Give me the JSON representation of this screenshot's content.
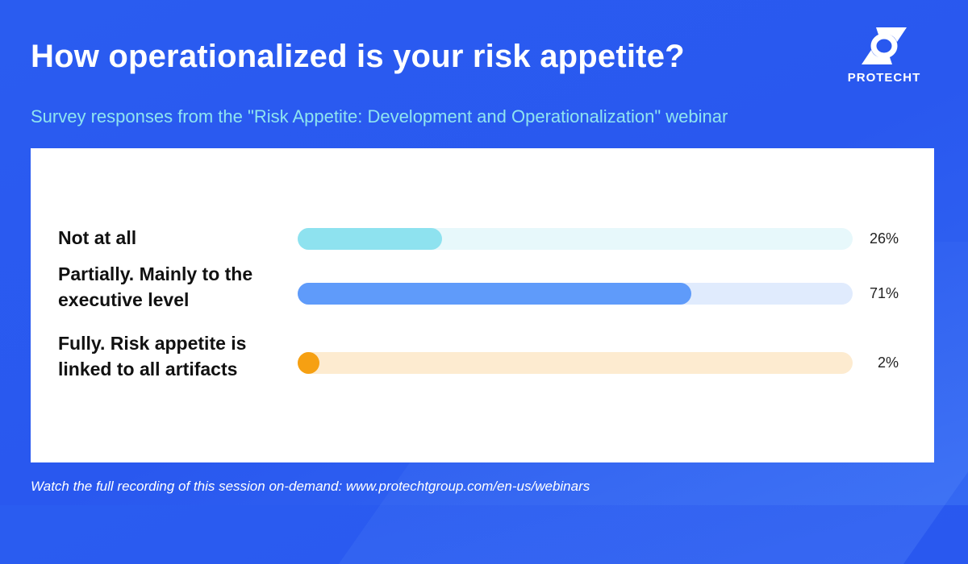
{
  "header": {
    "title": "How operationalized is your risk appetite?",
    "subtitle": "Survey responses from the \"Risk Appetite: Development and Operationalization\" webinar"
  },
  "logo": {
    "text": "PROTECHT",
    "icon": "protecht-logo-icon"
  },
  "footer": {
    "text": "Watch the full recording of this session on-demand: www.protechtgroup.com/en-us/webinars"
  },
  "colors": {
    "background": "#2a5cf0",
    "subtitle": "#8fe4f0",
    "panel": "#ffffff"
  },
  "chart_data": {
    "type": "bar",
    "orientation": "horizontal",
    "categories": [
      "Not at all",
      "Partially. Mainly  to the executive level",
      "Fully. Risk appetite is linked to all artifacts"
    ],
    "values": [
      26,
      71,
      2
    ],
    "value_labels": [
      "26%",
      "71%",
      "2%"
    ],
    "xlim": [
      0,
      100
    ],
    "grid": false,
    "legend": "none",
    "bar_colors": [
      "#8ee2ef",
      "#5f9bfa",
      "#f6a012"
    ],
    "track_colors": [
      "#e7f8fb",
      "#e0ebfd",
      "#fdebd0"
    ]
  }
}
